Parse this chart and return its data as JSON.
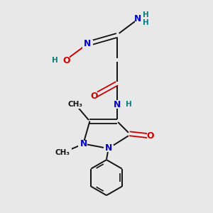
{
  "background_color": "#e8e8e8",
  "atom_colors": {
    "N": "#0000cc",
    "O": "#cc0000",
    "C": "#111111",
    "H": "#008080"
  },
  "figsize": [
    3.0,
    3.0
  ],
  "dpi": 100
}
